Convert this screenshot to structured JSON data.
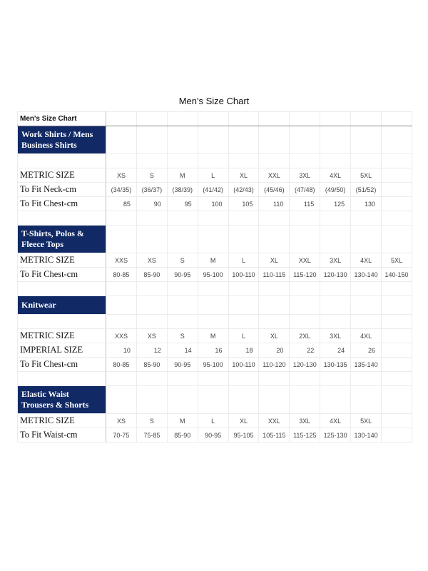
{
  "page_title": "Men's Size Chart",
  "table": {
    "header": "Men's Size Chart",
    "rows": [
      {
        "type": "section",
        "lines": 2,
        "label": "Work Shirts / Mens Business Shirts"
      },
      {
        "type": "blank"
      },
      {
        "type": "data",
        "label": "METRIC SIZE",
        "align": "ctr",
        "cells": [
          "XS",
          "S",
          "M",
          "L",
          "XL",
          "XXL",
          "3XL",
          "4XL",
          "5XL",
          ""
        ]
      },
      {
        "type": "data",
        "label": "To Fit Neck-cm",
        "align": "ctr",
        "cells": [
          "(34/35)",
          "(36/37)",
          "(38/39)",
          "(41/42)",
          "(42/43)",
          "(45/46)",
          "(47/48)",
          "(49/50)",
          "(51/52)",
          ""
        ]
      },
      {
        "type": "data",
        "label": "To Fit Chest-cm",
        "align": "num",
        "cells": [
          "85",
          "90",
          "95",
          "100",
          "105",
          "110",
          "115",
          "125",
          "130",
          ""
        ]
      },
      {
        "type": "blank"
      },
      {
        "type": "section",
        "lines": 2,
        "label": "T-Shirts, Polos & Fleece Tops"
      },
      {
        "type": "data",
        "label": "METRIC SIZE",
        "align": "ctr",
        "cells": [
          "XXS",
          "XS",
          "S",
          "M",
          "L",
          "XL",
          "XXL",
          "3XL",
          "4XL",
          "5XL"
        ]
      },
      {
        "type": "data",
        "label": "To Fit Chest-cm",
        "align": "ctr",
        "cells": [
          "80-85",
          "85-90",
          "90-95",
          "95-100",
          "100-110",
          "110-115",
          "115-120",
          "120-130",
          "130-140",
          "140-150"
        ]
      },
      {
        "type": "blank"
      },
      {
        "type": "section",
        "lines": 1,
        "label": "Knitwear"
      },
      {
        "type": "blank"
      },
      {
        "type": "data",
        "label": "METRIC SIZE",
        "align": "ctr",
        "cells": [
          "XXS",
          "XS",
          "S",
          "M",
          "L",
          "XL",
          "2XL",
          "3XL",
          "4XL",
          ""
        ]
      },
      {
        "type": "data",
        "label": "IMPERIAL SIZE",
        "align": "num",
        "cells": [
          "10",
          "12",
          "14",
          "16",
          "18",
          "20",
          "22",
          "24",
          "26",
          ""
        ]
      },
      {
        "type": "data",
        "label": "To Fit Chest-cm",
        "align": "ctr",
        "cells": [
          "80-85",
          "85-90",
          "90-95",
          "95-100",
          "100-110",
          "110-120",
          "120-130",
          "130-135",
          "135-140",
          ""
        ]
      },
      {
        "type": "blank"
      },
      {
        "type": "section",
        "lines": 2,
        "label": "Elastic Waist Trousers & Shorts"
      },
      {
        "type": "data",
        "label": "METRIC SIZE",
        "align": "ctr",
        "cells": [
          "XS",
          "S",
          "M",
          "L",
          "XL",
          "XXL",
          "3XL",
          "4XL",
          "5XL",
          ""
        ]
      },
      {
        "type": "data",
        "label": "To Fit Waist-cm",
        "align": "ctr",
        "cells": [
          "70-75",
          "75-85",
          "85-90",
          "90-95",
          "95-105",
          "105-115",
          "115-125",
          "125-130",
          "130-140",
          ""
        ]
      }
    ]
  }
}
